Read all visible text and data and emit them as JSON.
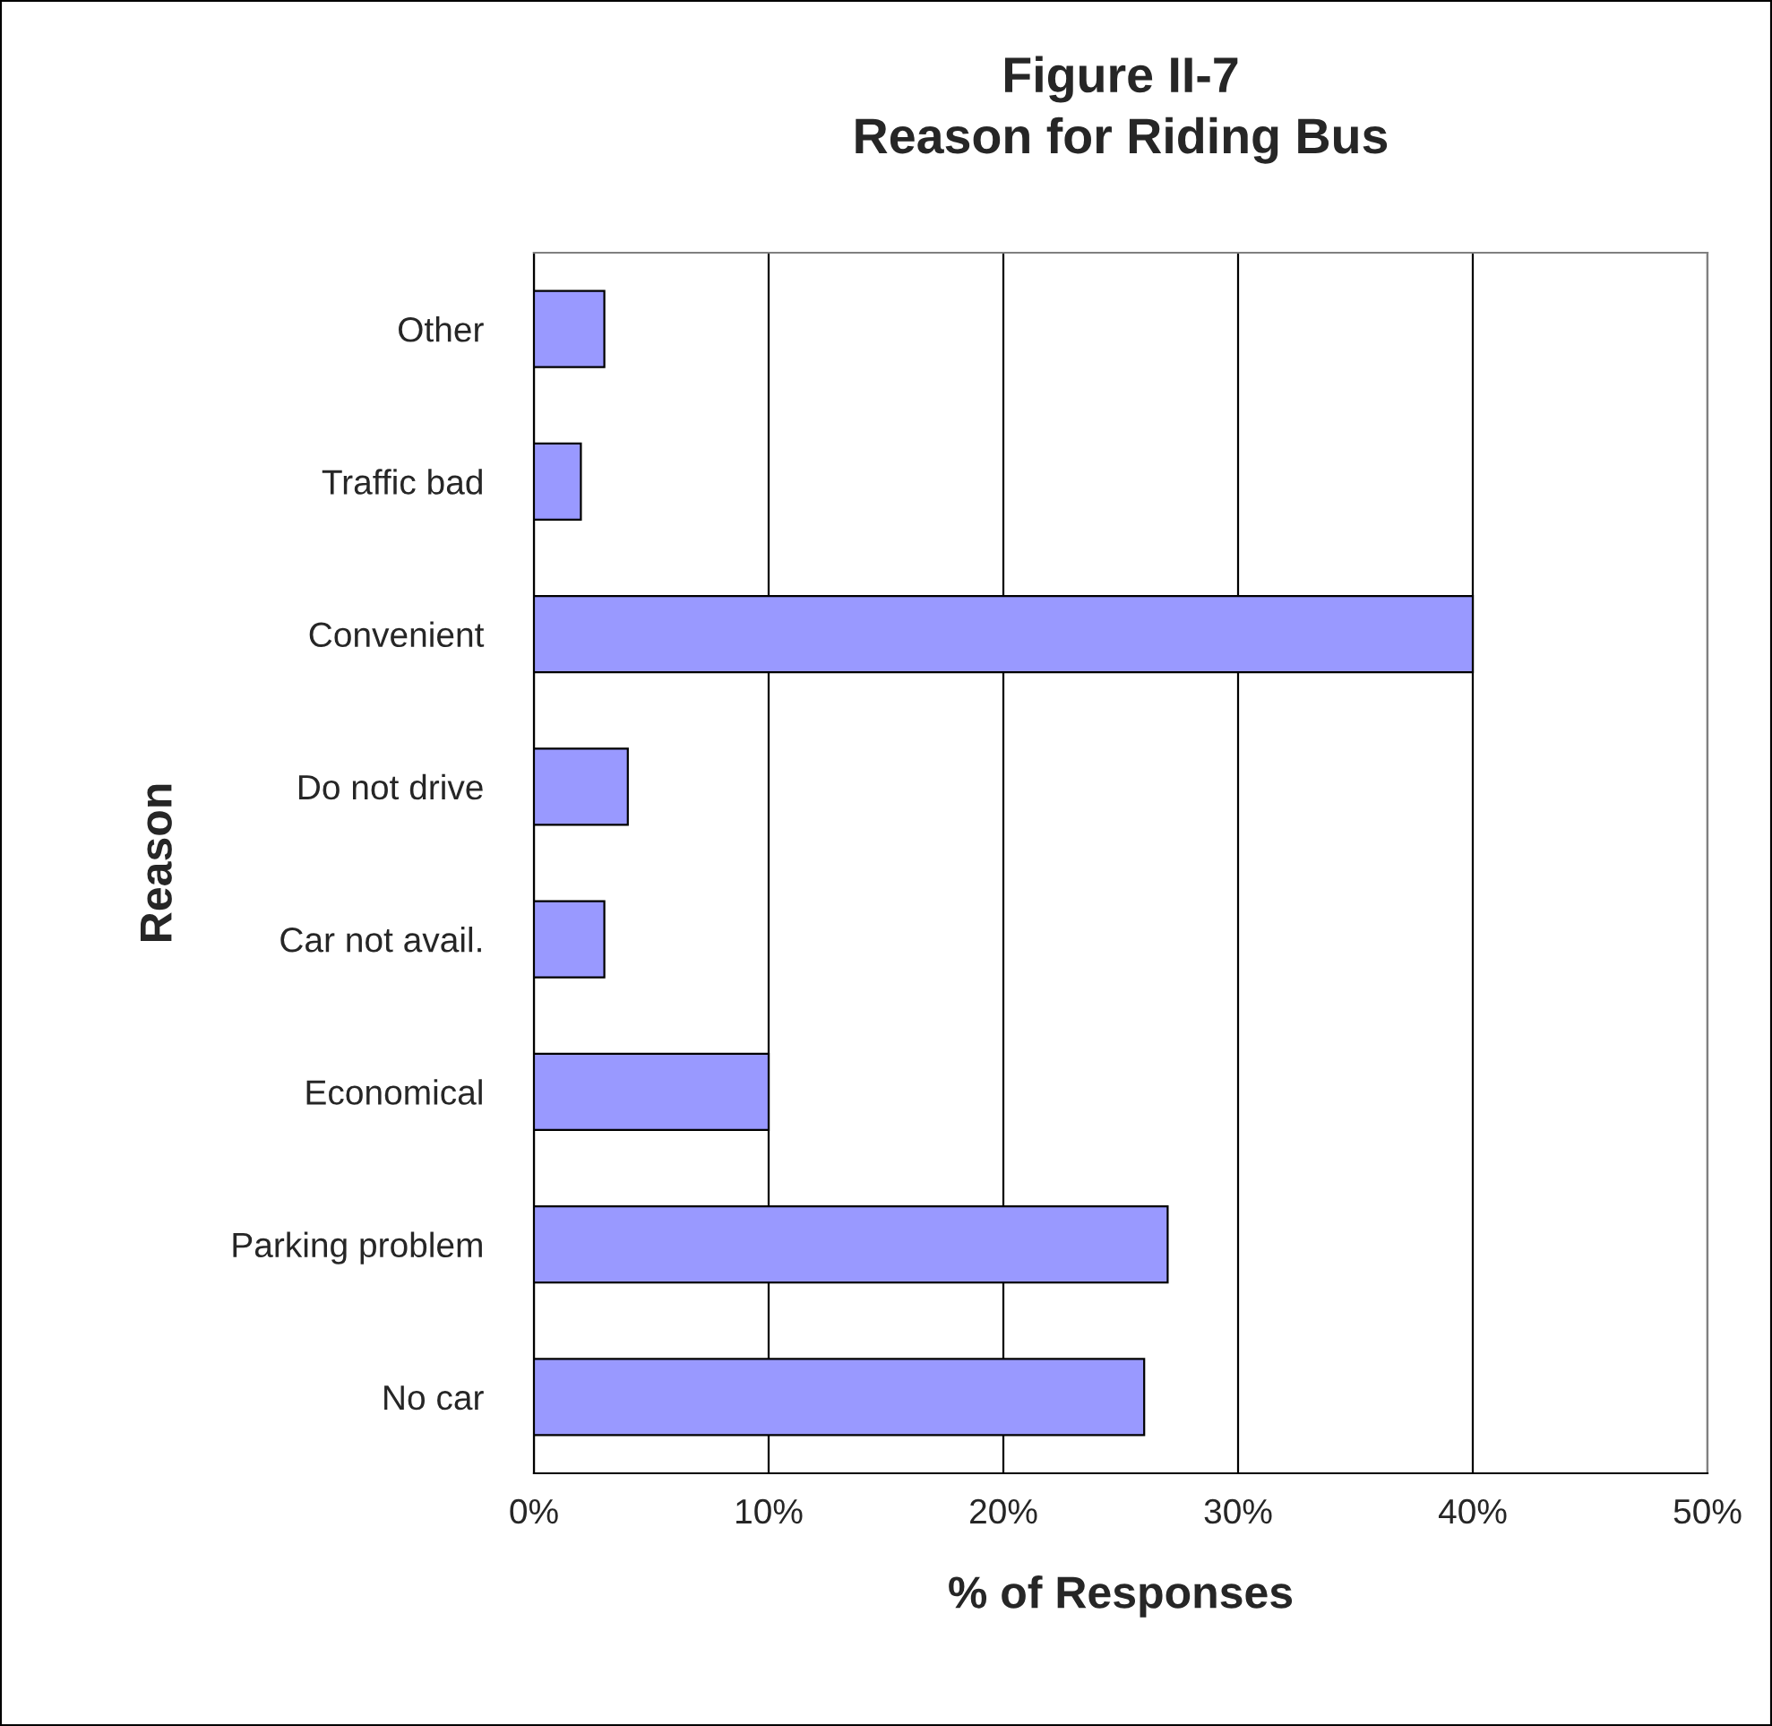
{
  "chart_data": {
    "type": "bar",
    "orientation": "horizontal",
    "title": "Figure II-7\nReason for Riding Bus",
    "xlabel": "% of Responses",
    "ylabel": "Reason",
    "categories": [
      "Other",
      "Traffic bad",
      "Convenient",
      "Do not drive",
      "Car not avail.",
      "Economical",
      "Parking problem",
      "No car"
    ],
    "values": [
      3,
      2,
      40,
      4,
      3,
      10,
      27,
      26
    ],
    "color": "#9999ff",
    "xlim": [
      0,
      50
    ],
    "xticks": [
      {
        "value": 0,
        "label": "0%"
      },
      {
        "value": 10,
        "label": "10%"
      },
      {
        "value": 20,
        "label": "20%"
      },
      {
        "value": 30,
        "label": "30%"
      },
      {
        "value": 40,
        "label": "40%"
      },
      {
        "value": 50,
        "label": "50%"
      }
    ],
    "grid": "x",
    "legend": false
  }
}
